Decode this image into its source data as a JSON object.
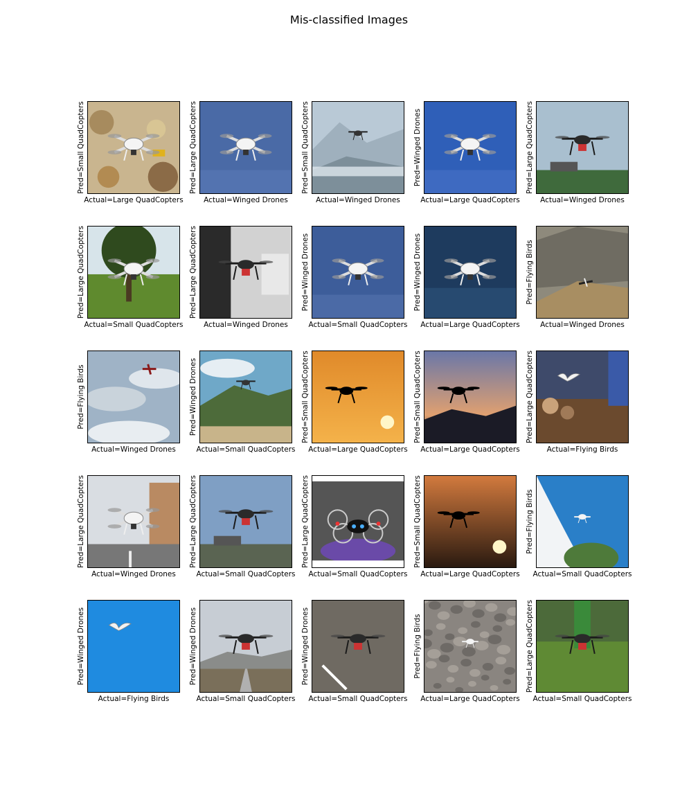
{
  "title": "Mis-classified Images",
  "grid": [
    {
      "pred": "Pred=Small QuadCopters",
      "actual": "Actual=Large QuadCopters",
      "scene": "rocks",
      "subject": "quad-white",
      "sky": "#c9b58f",
      "ground": "#8b6b47"
    },
    {
      "pred": "Pred=Large QuadCopters",
      "actual": "Actual=Winged Drones",
      "scene": "blue",
      "subject": "quad-white",
      "sky": "#4a6aa6",
      "ground": "#5373b0"
    },
    {
      "pred": "Pred=Small QuadCopters",
      "actual": "Actual=Winged Drones",
      "scene": "mountain",
      "subject": "quad-dark-small",
      "sky": "#b9c9d6",
      "ground": "#7d8f9a"
    },
    {
      "pred": "Pred=Winged Drones",
      "actual": "Actual=Large QuadCopters",
      "scene": "blue",
      "subject": "quad-white",
      "sky": "#2f5fb8",
      "ground": "#3e6ac1"
    },
    {
      "pred": "Pred=Large QuadCopters",
      "actual": "Actual=Winged Drones",
      "scene": "sky-ground",
      "subject": "quad-dark",
      "sky": "#a9bfcf",
      "ground": "#3f6a3c"
    },
    {
      "pred": "Pred=Large QuadCopters",
      "actual": "Actual=Small QuadCopters",
      "scene": "park",
      "subject": "quad-white",
      "sky": "#d7e4ea",
      "ground": "#5f8a2e"
    },
    {
      "pred": "Pred=Large QuadCopters",
      "actual": "Actual=Winged Drones",
      "scene": "street-bw",
      "subject": "quad-dark",
      "sky": "#d2d2d2",
      "ground": "#2a2a2a"
    },
    {
      "pred": "Pred=Winged Drones",
      "actual": "Actual=Small QuadCopters",
      "scene": "blue",
      "subject": "quad-white",
      "sky": "#3d5d9a",
      "ground": "#4b6aa6"
    },
    {
      "pred": "Pred=Winged Drones",
      "actual": "Actual=Large QuadCopters",
      "scene": "dark-blue",
      "subject": "quad-white",
      "sky": "#1e3b5e",
      "ground": "#274a70"
    },
    {
      "pred": "Pred=Flying Birds",
      "actual": "Actual=Winged Drones",
      "scene": "valley",
      "subject": "plane-small",
      "sky": "#8e8a7c",
      "ground": "#a88e62"
    },
    {
      "pred": "Pred=Flying Birds",
      "actual": "Actual=Winged Drones",
      "scene": "clouds",
      "subject": "plane-red",
      "sky": "#9fb3c6",
      "ground": "#c9d3db"
    },
    {
      "pred": "Pred=Winged Drones",
      "actual": "Actual=Small QuadCopters",
      "scene": "mountain-green",
      "subject": "quad-dark-small",
      "sky": "#6fa8c8",
      "ground": "#4d6b3a"
    },
    {
      "pred": "Pred=Small QuadCopters",
      "actual": "Actual=Large QuadCopters",
      "scene": "sunset",
      "subject": "quad-silhouette",
      "sky": "#e08a2a",
      "ground": "#f4b24a"
    },
    {
      "pred": "Pred=Small QuadCopters",
      "actual": "Actual=Large QuadCopters",
      "scene": "dusk",
      "subject": "quad-silhouette",
      "sky": "#6a77a8",
      "ground": "#2a2a3a"
    },
    {
      "pred": "Pred=Large QuadCopters",
      "actual": "Actual=Flying Birds",
      "scene": "crowd",
      "subject": "bird-white",
      "sky": "#3e4a6a",
      "ground": "#6b4a2e"
    },
    {
      "pred": "Pred=Large QuadCopters",
      "actual": "Actual=Winged Drones",
      "scene": "city",
      "subject": "quad-white",
      "sky": "#d9dde2",
      "ground": "#777777"
    },
    {
      "pred": "Pred=Large QuadCopters",
      "actual": "Actual=Small QuadCopters",
      "scene": "sky-ground",
      "subject": "quad-dark",
      "sky": "#7f9fc4",
      "ground": "#5a6452"
    },
    {
      "pred": "Pred=Large QuadCopters",
      "actual": "Actual=Small QuadCopters",
      "scene": "studio",
      "subject": "quad-lit",
      "sky": "#555555",
      "ground": "#6a4aa8"
    },
    {
      "pred": "Pred=Small QuadCopters",
      "actual": "Actual=Large QuadCopters",
      "scene": "sunset",
      "subject": "quad-silhouette",
      "sky": "#d27a3e",
      "ground": "#2a1a10"
    },
    {
      "pred": "Pred=Flying Birds",
      "actual": "Actual=Small QuadCopters",
      "scene": "blue-tree",
      "subject": "quad-white-small",
      "sky": "#2a7fc8",
      "ground": "#4e7a3a"
    },
    {
      "pred": "Pred=Winged Drones",
      "actual": "Actual=Flying Birds",
      "scene": "plain-blue",
      "subject": "bird-white",
      "sky": "#1f8be0",
      "ground": "#2a9aef"
    },
    {
      "pred": "Pred=Winged Drones",
      "actual": "Actual=Small QuadCopters",
      "scene": "road",
      "subject": "quad-dark",
      "sky": "#c7cdd4",
      "ground": "#7a6f5a"
    },
    {
      "pred": "Pred=Winged Drones",
      "actual": "Actual=Small QuadCopters",
      "scene": "asphalt",
      "subject": "quad-dark",
      "sky": "#6f6a62",
      "ground": "#6a655c"
    },
    {
      "pred": "Pred=Flying Birds",
      "actual": "Actual=Large QuadCopters",
      "scene": "pebbles",
      "subject": "quad-white-small",
      "sky": "#8a8580",
      "ground": "#6e6a66"
    },
    {
      "pred": "Pred=Large QuadCopters",
      "actual": "Actual=Small QuadCopters",
      "scene": "grass",
      "subject": "quad-dark",
      "sky": "#4c6a3a",
      "ground": "#5f8a34"
    }
  ]
}
